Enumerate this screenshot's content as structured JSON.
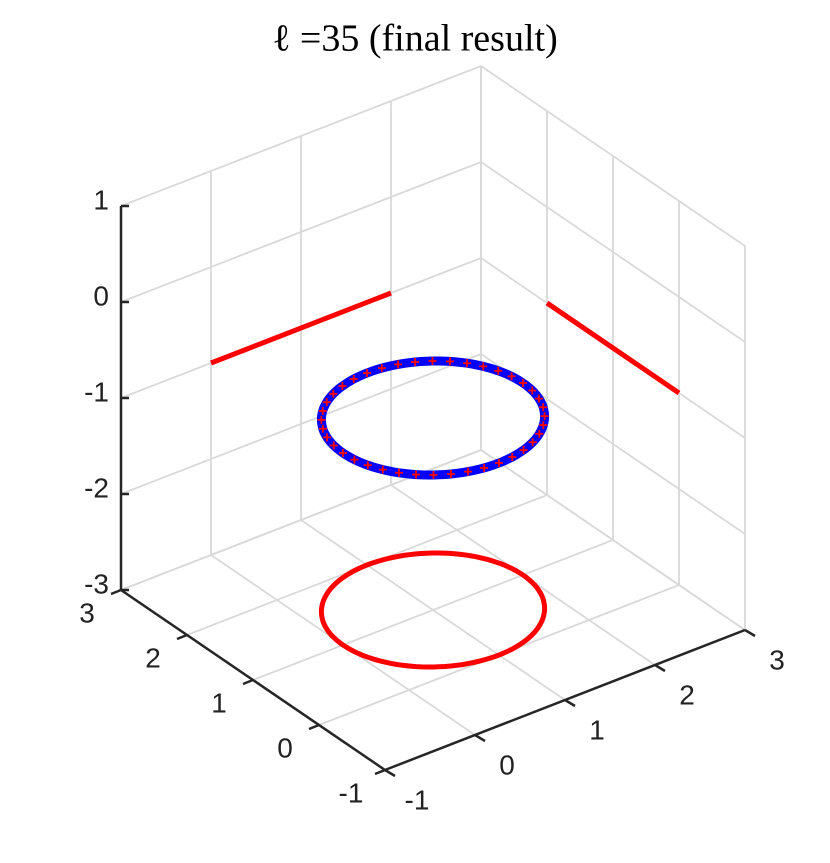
{
  "chart_data": {
    "type": "circle3d",
    "title": "ℓ =35 (final result)",
    "xlim": [
      -1,
      3
    ],
    "ylim": [
      -1,
      3
    ],
    "zlim": [
      -3,
      1
    ],
    "xticks": [
      -1,
      0,
      1,
      2,
      3
    ],
    "yticks": [
      -1,
      0,
      1,
      2,
      3
    ],
    "zticks": [
      -3,
      -2,
      -1,
      0,
      1
    ],
    "grid": true,
    "circle": {
      "center": [
        1,
        1,
        -1
      ],
      "radius": 1,
      "color": "#0000ff",
      "marker_color": "#ff0000"
    },
    "projection_color": "#ff0000"
  }
}
